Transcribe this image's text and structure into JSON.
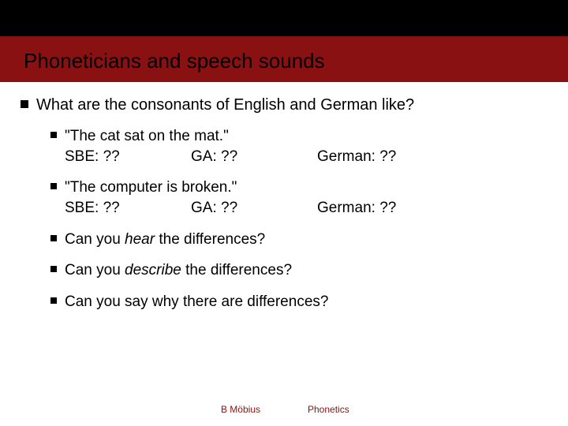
{
  "colors": {
    "header_top": "#000000",
    "header_bottom": "#8a1111",
    "bullet": "#000000",
    "text": "#000000",
    "footer_text": "#8a1111",
    "background": "#ffffff"
  },
  "title": "Phoneticians and speech sounds",
  "main_bullet": "What are the consonants of English and German like?",
  "examples": [
    {
      "sentence": "\"The cat sat on the mat.\"",
      "sbe_label": "SBE:",
      "sbe_value": "??",
      "ga_label": "GA:",
      "ga_value": "??",
      "de_label": "German:",
      "de_value": "??"
    },
    {
      "sentence": "\"The computer is broken.\"",
      "sbe_label": "SBE:",
      "sbe_value": "??",
      "ga_label": "GA:",
      "ga_value": "??",
      "de_label": "German:",
      "de_value": "??"
    }
  ],
  "questions": [
    {
      "pre": "Can you ",
      "em": "hear",
      "post": " the differences?"
    },
    {
      "pre": "Can you ",
      "em": "describe",
      "post": " the differences?"
    },
    {
      "pre": "Can you say why there are differences?",
      "em": "",
      "post": ""
    }
  ],
  "footer": {
    "author": "B Möbius",
    "course": "Phonetics"
  }
}
